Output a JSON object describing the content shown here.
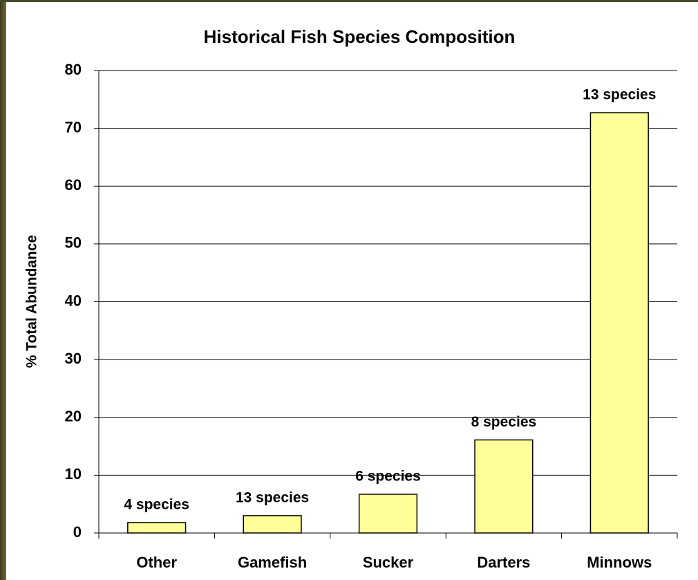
{
  "chart_data": {
    "type": "bar",
    "title": "Historical Fish Species Composition",
    "y_label": "% Total Abundance",
    "categories": [
      "Other",
      "Gamefish",
      "Sucker",
      "Darters",
      "Minnows"
    ],
    "values": [
      1.8,
      3.0,
      6.7,
      16.1,
      72.7
    ],
    "bar_labels": [
      "4 species",
      "13 species",
      "6 species",
      "8 species",
      "13 species"
    ],
    "color": "#ffff99",
    "ylim": [
      0,
      80
    ],
    "yticks": [
      0,
      10,
      20,
      30,
      40,
      50,
      60,
      70,
      80
    ],
    "grid": true
  }
}
